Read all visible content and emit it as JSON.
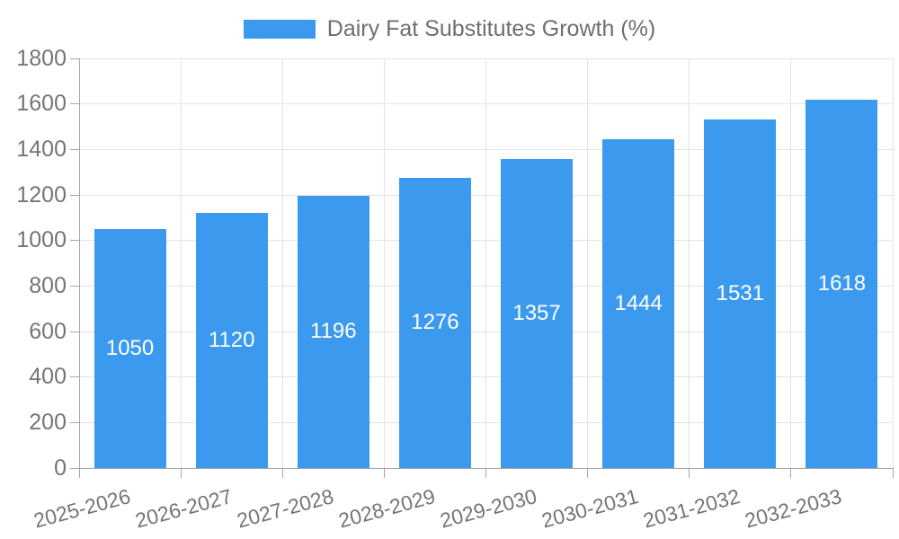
{
  "chart_data": {
    "type": "bar",
    "title": "Dairy Fat Substitutes Growth (%)",
    "legend_entries": [
      "Dairy Fat Substitutes Growth (%)"
    ],
    "legend_position": "top-center",
    "categories": [
      "2025-2026",
      "2026-2027",
      "2027-2028",
      "2028-2029",
      "2029-2030",
      "2030-2031",
      "2031-2032",
      "2032-2033"
    ],
    "series": [
      {
        "name": "Dairy Fat Substitutes Growth (%)",
        "values": [
          1050,
          1120,
          1196,
          1276,
          1357,
          1444,
          1531,
          1618
        ]
      }
    ],
    "value_labels_shown": true,
    "xlabel": "",
    "ylabel": "",
    "ylim": [
      0,
      1800
    ],
    "yticks": [
      0,
      200,
      400,
      600,
      800,
      1000,
      1200,
      1400,
      1600,
      1800
    ],
    "grid": true,
    "x_label_rotation_deg": -15,
    "colors": {
      "bar": "#3C9AEE",
      "value_label": "#FFFFFF",
      "gridline": "#E3E3E3",
      "axis": "#A6A6A6",
      "tick_text": "#757575",
      "legend_text": "#6E6E6E",
      "background": "#FFFFFF"
    }
  }
}
